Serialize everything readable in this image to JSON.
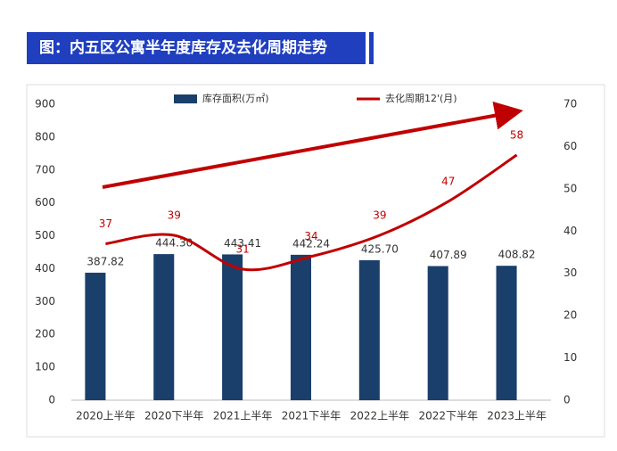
{
  "chart_data": {
    "type": "bar",
    "title": "图：内五区公寓半年度库存及去化周期走势",
    "categories": [
      "2020上半年",
      "2020下半年",
      "2021上半年",
      "2021下半年",
      "2022上半年",
      "2022下半年",
      "2023上半年"
    ],
    "series": [
      {
        "name": "库存面积(万㎡)",
        "type": "bar",
        "color": "#1b3f6b",
        "axis": "y",
        "values": [
          387.82,
          444.3,
          443.41,
          442.24,
          425.7,
          407.89,
          408.82
        ],
        "value_labels": [
          "387.82",
          "444.30",
          "443.41",
          "442.24",
          "425.70",
          "407.89",
          "408.82"
        ]
      },
      {
        "name": "去化周期12'(月)",
        "type": "line",
        "color": "#c00000",
        "axis": "y2",
        "values": [
          37,
          39,
          31,
          34,
          39,
          47,
          58
        ]
      }
    ],
    "ylim": [
      0,
      900
    ],
    "yticks": [
      0,
      100,
      200,
      300,
      400,
      500,
      600,
      700,
      800,
      900
    ],
    "y2lim": [
      0,
      70
    ],
    "y2ticks": [
      0,
      10,
      20,
      30,
      40,
      50,
      60,
      70
    ],
    "grid": false,
    "legend": "top"
  }
}
